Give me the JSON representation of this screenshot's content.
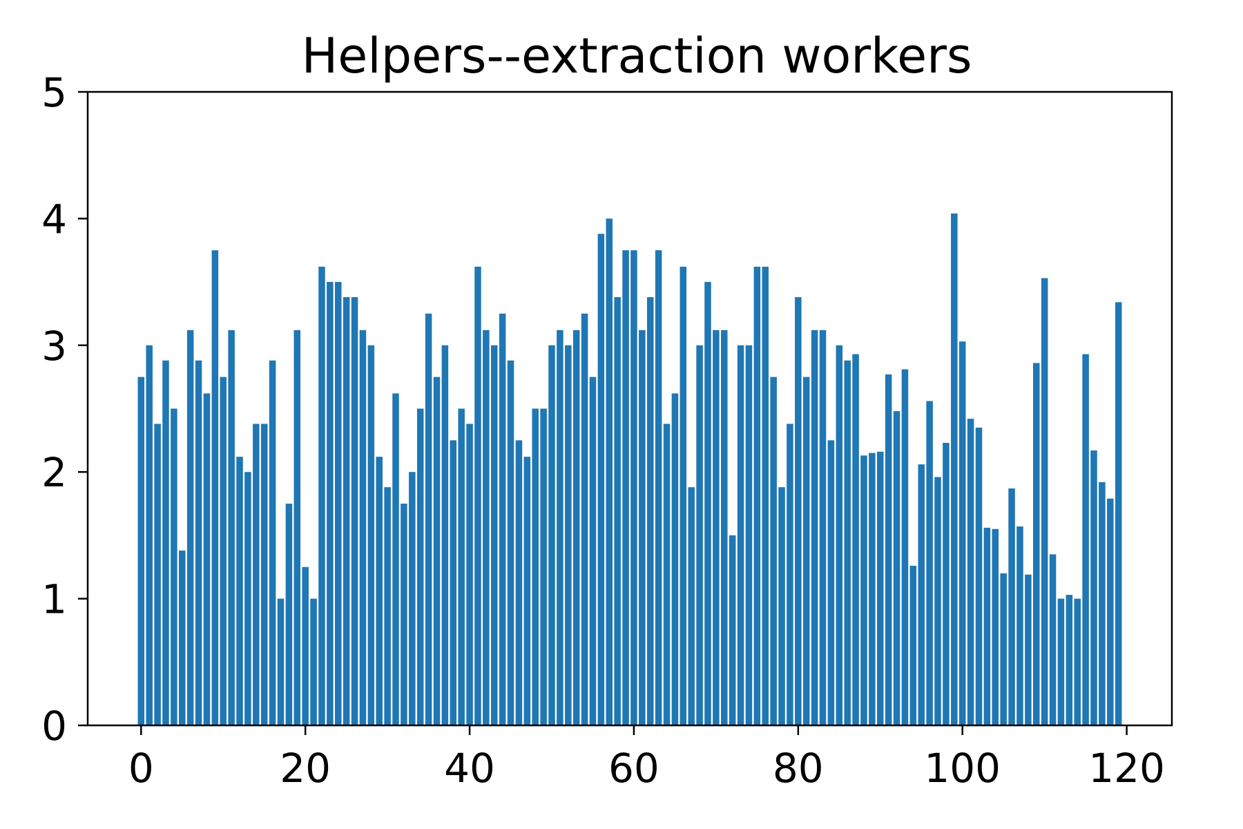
{
  "chart_data": {
    "type": "bar",
    "title": "Helpers--extraction workers",
    "xlabel": "",
    "ylabel": "",
    "xlim": [
      -6.5,
      125.5
    ],
    "ylim": [
      0,
      5
    ],
    "x_ticks": [
      0,
      20,
      40,
      60,
      80,
      100,
      120
    ],
    "y_ticks": [
      0,
      1,
      2,
      3,
      4,
      5
    ],
    "grid": false,
    "legend": "none",
    "bar_color": "#1f77b4",
    "x": [
      0,
      1,
      2,
      3,
      4,
      5,
      6,
      7,
      8,
      9,
      10,
      11,
      12,
      13,
      14,
      15,
      16,
      17,
      18,
      19,
      20,
      21,
      22,
      23,
      24,
      25,
      26,
      27,
      28,
      29,
      30,
      31,
      32,
      33,
      34,
      35,
      36,
      37,
      38,
      39,
      40,
      41,
      42,
      43,
      44,
      45,
      46,
      47,
      48,
      49,
      50,
      51,
      52,
      53,
      54,
      55,
      56,
      57,
      58,
      59,
      60,
      61,
      62,
      63,
      64,
      65,
      66,
      67,
      68,
      69,
      70,
      71,
      72,
      73,
      74,
      75,
      76,
      77,
      78,
      79,
      80,
      81,
      82,
      83,
      84,
      85,
      86,
      87,
      88,
      89,
      90,
      91,
      92,
      93,
      94,
      95,
      96,
      97,
      98,
      99,
      100,
      101,
      102,
      103,
      104,
      105,
      106,
      107,
      108,
      109,
      110,
      111,
      112,
      113,
      114,
      115,
      116,
      117,
      118,
      119
    ],
    "values": [
      2.75,
      3.0,
      2.38,
      2.88,
      2.5,
      1.38,
      3.12,
      2.88,
      2.62,
      3.75,
      2.75,
      3.12,
      2.12,
      2.0,
      2.38,
      2.38,
      2.88,
      1.0,
      1.75,
      3.12,
      1.25,
      1.0,
      3.62,
      3.5,
      3.5,
      3.38,
      3.38,
      3.12,
      3.0,
      2.12,
      1.88,
      2.62,
      1.75,
      2.0,
      2.5,
      3.25,
      2.75,
      3.0,
      2.25,
      2.5,
      2.38,
      3.62,
      3.12,
      3.0,
      3.25,
      2.88,
      2.25,
      2.12,
      2.5,
      2.5,
      3.0,
      3.12,
      3.0,
      3.12,
      3.25,
      2.75,
      3.88,
      4.0,
      3.38,
      3.75,
      3.75,
      3.12,
      3.38,
      3.75,
      2.38,
      2.62,
      3.62,
      1.88,
      3.0,
      3.5,
      3.12,
      3.12,
      1.5,
      3.0,
      3.0,
      3.62,
      3.62,
      2.75,
      1.88,
      2.38,
      3.38,
      2.75,
      3.12,
      3.12,
      2.25,
      3.0,
      2.88,
      2.93,
      2.13,
      2.15,
      2.16,
      2.77,
      2.48,
      2.81,
      1.26,
      2.06,
      2.56,
      1.96,
      2.23,
      4.04,
      3.03,
      2.42,
      2.35,
      1.56,
      1.55,
      1.2,
      1.87,
      1.57,
      1.19,
      2.86,
      3.53,
      1.35,
      1.0,
      1.03,
      1.0,
      2.93,
      2.17,
      1.92,
      1.79,
      3.34
    ]
  }
}
